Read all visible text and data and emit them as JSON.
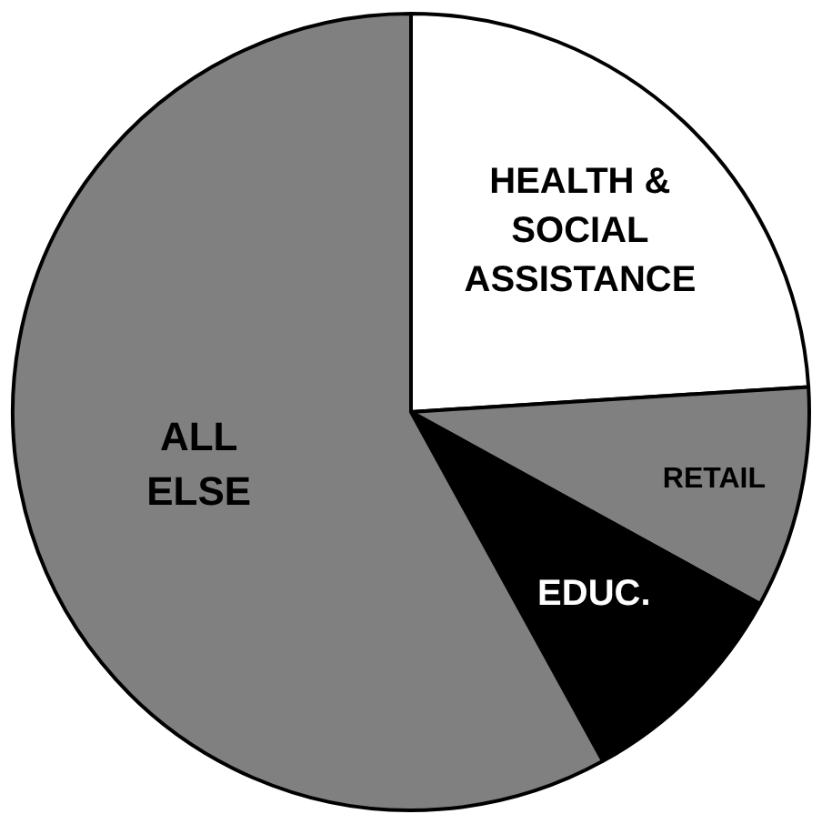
{
  "chart_data": {
    "type": "pie",
    "categories": [
      "HEALTH & SOCIAL ASSISTANCE",
      "RETAIL",
      "EDUC.",
      "ALL ELSE"
    ],
    "values": [
      24,
      9,
      9,
      58
    ],
    "colors": [
      "#ffffff",
      "#808080",
      "#000000",
      "#808080"
    ]
  }
}
